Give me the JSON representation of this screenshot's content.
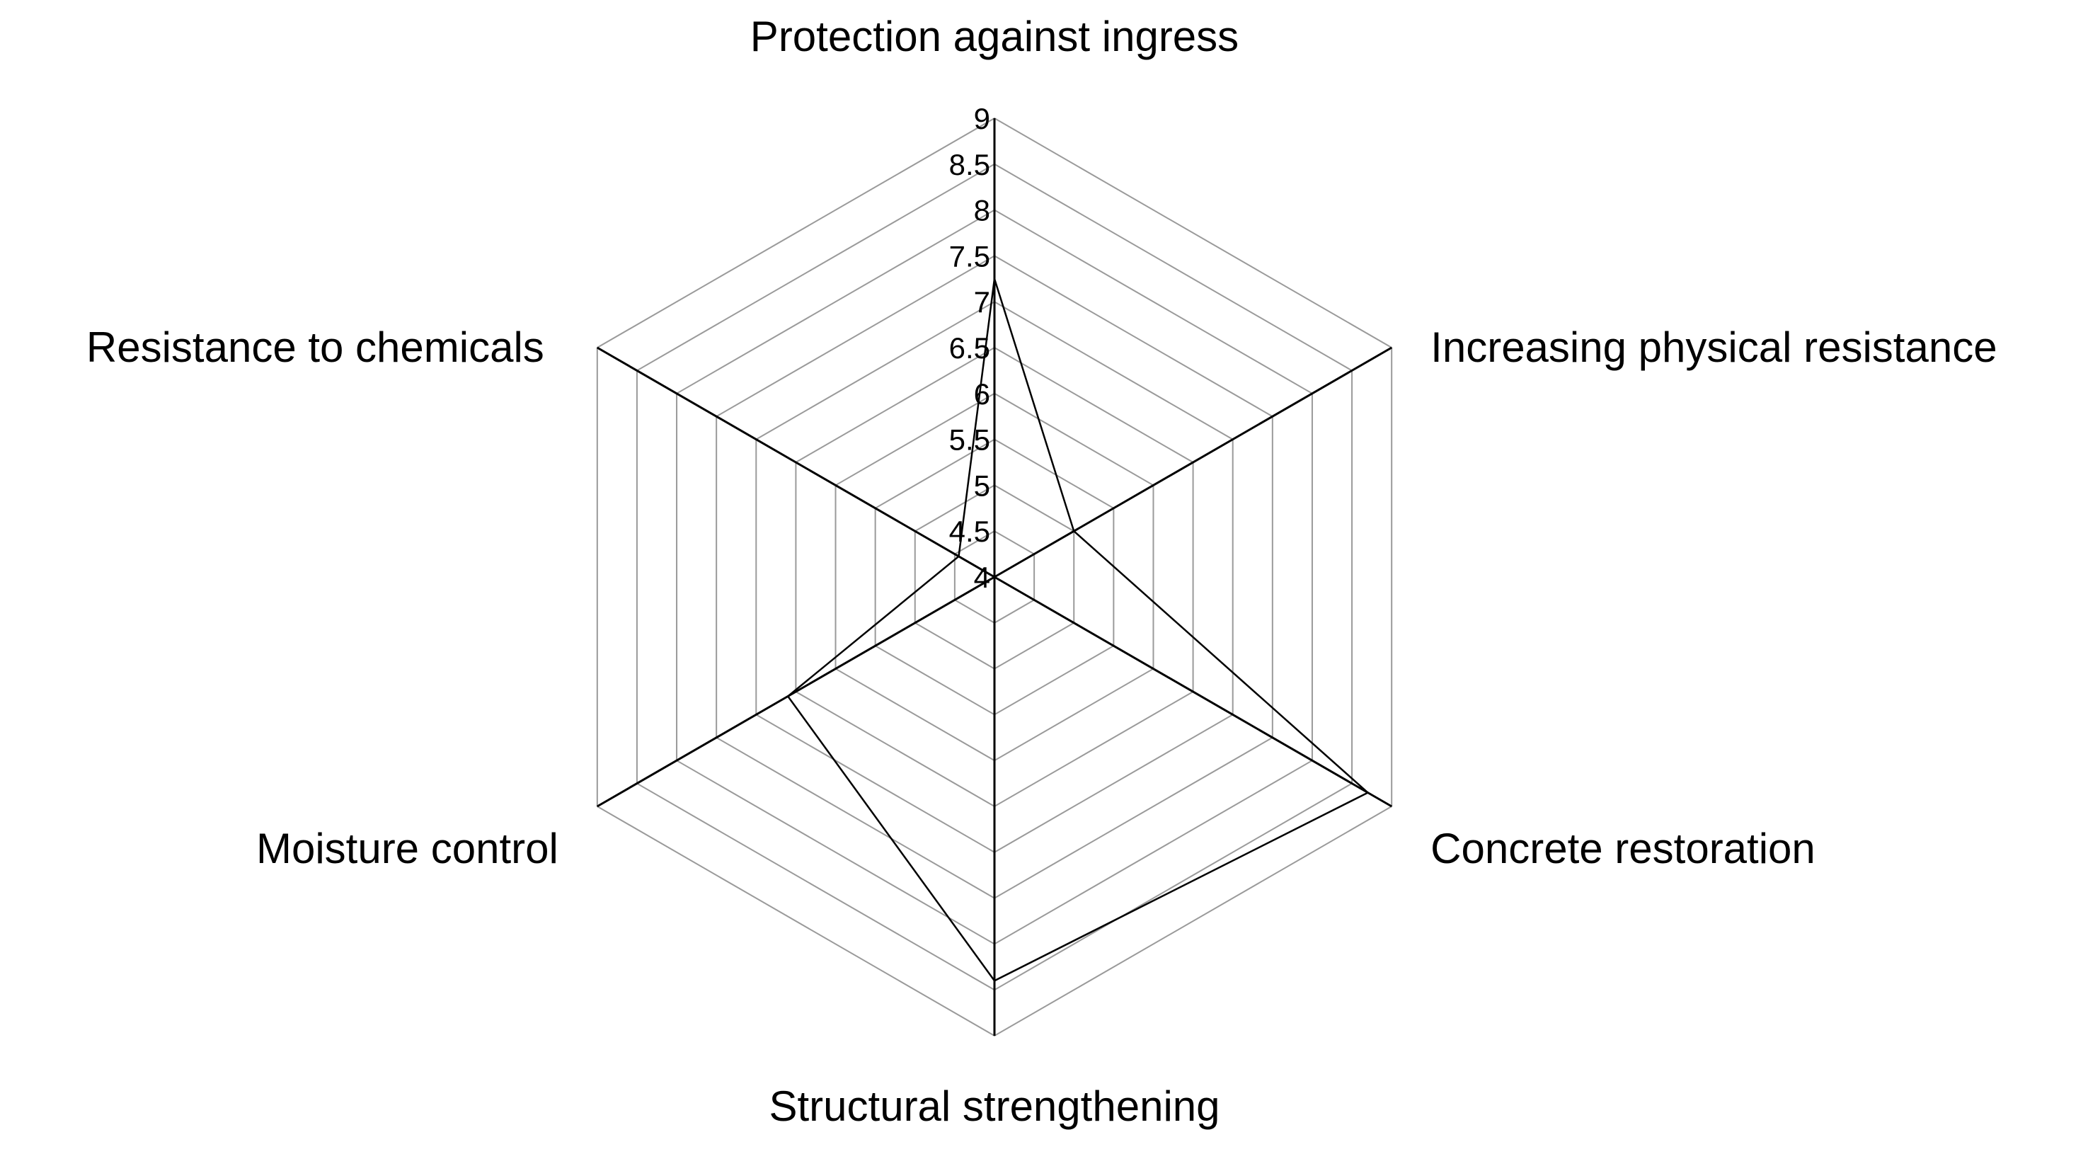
{
  "chart_data": {
    "type": "radar",
    "axes": [
      "Protection against ingress",
      "Increasing physical resistance",
      "Concrete restoration",
      "Structural strengthening",
      "Moisture control",
      "Resistance to chemicals"
    ],
    "tick_labels": [
      "4",
      "4.5",
      "5",
      "5.5",
      "6",
      "6.5",
      "7",
      "7.5",
      "8",
      "8.5",
      "9"
    ],
    "rlim": [
      4,
      9
    ],
    "grid": true,
    "series": [
      {
        "values": [
          7.25,
          5.0,
          8.7,
          8.4,
          6.6,
          4.45
        ]
      }
    ],
    "colors": {
      "grid": "#9a9a9a",
      "spoke": "#000000",
      "series": "#000000",
      "text": "#000000"
    }
  }
}
